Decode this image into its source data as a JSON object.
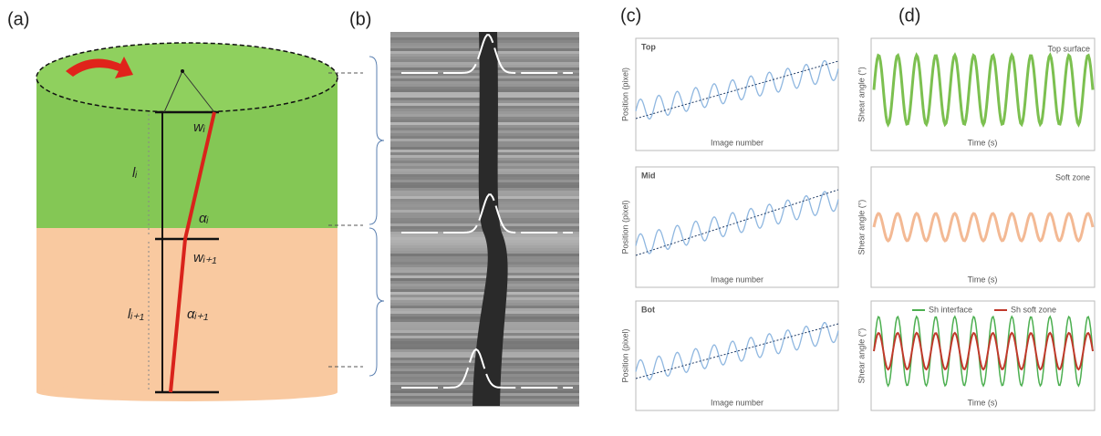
{
  "panels": {
    "a": {
      "label": "(a)",
      "annotations": [
        "wᵢ",
        "lᵢ",
        "αᵢ",
        "wᵢ₊₁",
        "lᵢ₊₁",
        "αᵢ₊₁"
      ]
    },
    "b": {
      "label": "(b)"
    },
    "c": {
      "label": "(c)",
      "plots": [
        {
          "title": "Top",
          "y_label": "Position (pixel)",
          "x_label": "Image number"
        },
        {
          "title": "Mid",
          "y_label": "Position (pixel)",
          "x_label": "Image number"
        },
        {
          "title": "Bot",
          "y_label": "Position (pixel)",
          "x_label": "Image number"
        }
      ]
    },
    "d": {
      "label": "(d)",
      "plots": [
        {
          "title": "Top surface",
          "y_label": "Shear angle (°)",
          "x_label": "Time (s)"
        },
        {
          "title": "Soft zone",
          "y_label": "Shear angle (°)",
          "x_label": "Time (s)"
        },
        {
          "legend": [
            "Sh interface",
            "Sh soft zone"
          ],
          "y_label": "Shear angle (°)",
          "x_label": "Time (s)"
        }
      ]
    }
  }
}
